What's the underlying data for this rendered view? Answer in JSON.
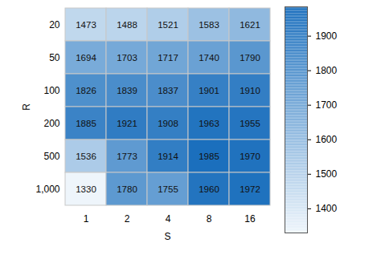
{
  "chart_data": {
    "type": "heatmap",
    "x_label": "S",
    "y_label": "R",
    "x": [
      1,
      2,
      4,
      8,
      16
    ],
    "y": [
      20,
      50,
      100,
      200,
      500,
      1000
    ],
    "cells": [
      [
        1473,
        1488,
        1521,
        1583,
        1621
      ],
      [
        1694,
        1703,
        1717,
        1740,
        1790
      ],
      [
        1826,
        1839,
        1837,
        1901,
        1910
      ],
      [
        1885,
        1921,
        1908,
        1963,
        1955
      ],
      [
        1536,
        1773,
        1914,
        1985,
        1970
      ],
      [
        1330,
        1780,
        1755,
        1960,
        1972
      ]
    ],
    "data_labels": true,
    "colorbar_range": [
      1330,
      1985
    ],
    "colorbar_ticks": [
      1400,
      1500,
      1600,
      1700,
      1800,
      1900
    ]
  }
}
